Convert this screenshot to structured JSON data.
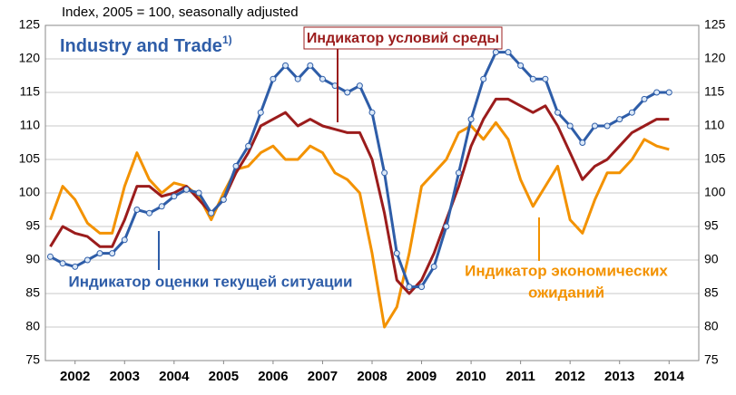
{
  "chart_data": {
    "type": "line",
    "subtitle": "Index, 2005 = 100, seasonally adjusted",
    "title": "Industry and Trade",
    "title_note": "1)",
    "annotations": [
      "Индикатор условий среды",
      "Индикатор оценки текущей ситуации",
      "Индикатор экономических",
      "ожиданий"
    ],
    "x": [
      2002.0,
      2002.25,
      2002.5,
      2002.75,
      2003.0,
      2003.25,
      2003.5,
      2003.75,
      2004.0,
      2004.25,
      2004.5,
      2004.75,
      2005.0,
      2005.25,
      2005.5,
      2005.75,
      2006.0,
      2006.25,
      2006.5,
      2006.75,
      2007.0,
      2007.25,
      2007.5,
      2007.75,
      2008.0,
      2008.25,
      2008.5,
      2008.75,
      2009.0,
      2009.25,
      2009.5,
      2009.75,
      2010.0,
      2010.25,
      2010.5,
      2010.75,
      2011.0,
      2011.25,
      2011.5,
      2011.75,
      2012.0,
      2012.25,
      2012.5,
      2012.75,
      2013.0,
      2013.25,
      2013.5,
      2013.75,
      2014.0,
      2014.25,
      2014.5
    ],
    "series": [
      {
        "name": "Индикатор оценки текущей ситуации",
        "color": "#2e5da8",
        "markers": true,
        "values": [
          90.5,
          89.5,
          89,
          90,
          91,
          91,
          93,
          97.5,
          97,
          98,
          99.5,
          100.5,
          100,
          97,
          99,
          104,
          107,
          112,
          117,
          119,
          117,
          119,
          117,
          116,
          115,
          116,
          112,
          103,
          91,
          86,
          86,
          89,
          95,
          103,
          111,
          117,
          121,
          121,
          119,
          117,
          117,
          112,
          110,
          107.5,
          110,
          110,
          111,
          112,
          114,
          115,
          115
        ]
      },
      {
        "name": "Индикатор условий среды",
        "color": "#9b1c1c",
        "markers": false,
        "values": [
          92,
          95,
          94,
          93.5,
          92,
          92,
          96,
          101,
          101,
          99.5,
          100,
          101,
          99,
          97,
          99,
          103,
          106,
          110,
          111,
          112,
          110,
          111,
          110,
          109.5,
          109,
          109,
          105,
          97,
          87,
          85,
          87,
          91,
          96,
          101,
          107,
          111,
          114,
          114,
          113,
          112,
          113,
          110,
          106,
          102,
          104,
          105,
          107,
          109,
          110,
          111,
          111
        ]
      },
      {
        "name": "Индикатор экономических ожиданий",
        "color": "#f39200",
        "markers": false,
        "values": [
          96,
          101,
          99,
          95.5,
          94,
          94,
          101,
          106,
          102,
          100,
          101.5,
          101,
          99.5,
          96,
          100,
          103.5,
          104,
          106,
          107,
          105,
          105,
          107,
          106,
          103,
          102,
          100,
          91,
          80,
          83,
          91,
          101,
          103,
          105,
          109,
          110,
          108,
          110.5,
          108,
          102,
          98,
          101,
          104,
          96,
          94,
          99,
          103,
          103,
          105,
          108,
          107,
          106.5
        ]
      }
    ],
    "xlim": [
      2001.9,
      2015.1
    ],
    "xticks": [
      {
        "value": 2002.5,
        "label": "2002"
      },
      {
        "value": 2003.5,
        "label": "2003"
      },
      {
        "value": 2004.5,
        "label": "2004"
      },
      {
        "value": 2005.5,
        "label": "2005"
      },
      {
        "value": 2006.5,
        "label": "2006"
      },
      {
        "value": 2007.5,
        "label": "2007"
      },
      {
        "value": 2008.5,
        "label": "2008"
      },
      {
        "value": 2009.5,
        "label": "2009"
      },
      {
        "value": 2010.5,
        "label": "2010"
      },
      {
        "value": 2011.5,
        "label": "2011"
      },
      {
        "value": 2012.5,
        "label": "2012"
      },
      {
        "value": 2013.5,
        "label": "2013"
      },
      {
        "value": 2014.5,
        "label": "2014"
      }
    ],
    "ylim": [
      75,
      125
    ],
    "yticks": [
      75,
      80,
      85,
      90,
      95,
      100,
      105,
      110,
      115,
      120,
      125
    ],
    "grid": true
  }
}
